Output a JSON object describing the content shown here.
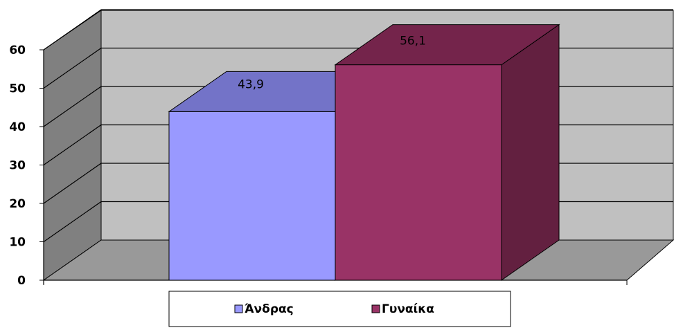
{
  "chart_data": {
    "type": "bar",
    "variant": "3d-clustered",
    "categories": [
      ""
    ],
    "series": [
      {
        "name": "Άνδρας",
        "values": [
          43.9
        ],
        "color": "#9999ff",
        "top_color": "#7373c8",
        "side_color": "#5c5ca0"
      },
      {
        "name": "Γυναίκα",
        "values": [
          56.1
        ],
        "color": "#993366",
        "top_color": "#74244b",
        "side_color": "#632040"
      }
    ],
    "data_labels": [
      "43,9",
      "56,1"
    ],
    "title": "",
    "xlabel": "",
    "ylabel": "",
    "ylim": [
      0,
      60
    ],
    "y_ticks": [
      "0",
      "10",
      "20",
      "30",
      "40",
      "50",
      "60"
    ],
    "grid": true,
    "legend_position": "bottom",
    "colors": {
      "back_wall": "#c0c0c0",
      "side_wall": "#808080",
      "floor": "#999999",
      "gridline": "#000000"
    }
  }
}
